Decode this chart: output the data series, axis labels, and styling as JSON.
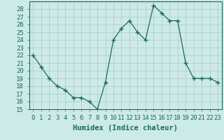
{
  "x": [
    0,
    1,
    2,
    3,
    4,
    5,
    6,
    7,
    8,
    9,
    10,
    11,
    12,
    13,
    14,
    15,
    16,
    17,
    18,
    19,
    20,
    21,
    22,
    23
  ],
  "y": [
    22,
    20.5,
    19,
    18,
    17.5,
    16.5,
    16.5,
    16,
    15,
    18.5,
    24,
    25.5,
    26.5,
    25,
    24,
    28.5,
    27.5,
    26.5,
    26.5,
    21,
    19,
    19,
    19,
    18.5
  ],
  "line_color": "#1a6b5a",
  "marker": "+",
  "marker_size": 4,
  "bg_color": "#cceae7",
  "grid_color": "#b0c8c5",
  "xlabel": "Humidex (Indice chaleur)",
  "ylim": [
    15,
    29
  ],
  "xlim": [
    -0.5,
    23.5
  ],
  "yticks": [
    15,
    16,
    17,
    18,
    19,
    20,
    21,
    22,
    23,
    24,
    25,
    26,
    27,
    28
  ],
  "xticks": [
    0,
    1,
    2,
    3,
    4,
    5,
    6,
    7,
    8,
    9,
    10,
    11,
    12,
    13,
    14,
    15,
    16,
    17,
    18,
    19,
    20,
    21,
    22,
    23
  ],
  "tick_label_fontsize": 6.5,
  "xlabel_fontsize": 7.5,
  "marker_color": "#1a6b5a",
  "line_width": 0.9
}
